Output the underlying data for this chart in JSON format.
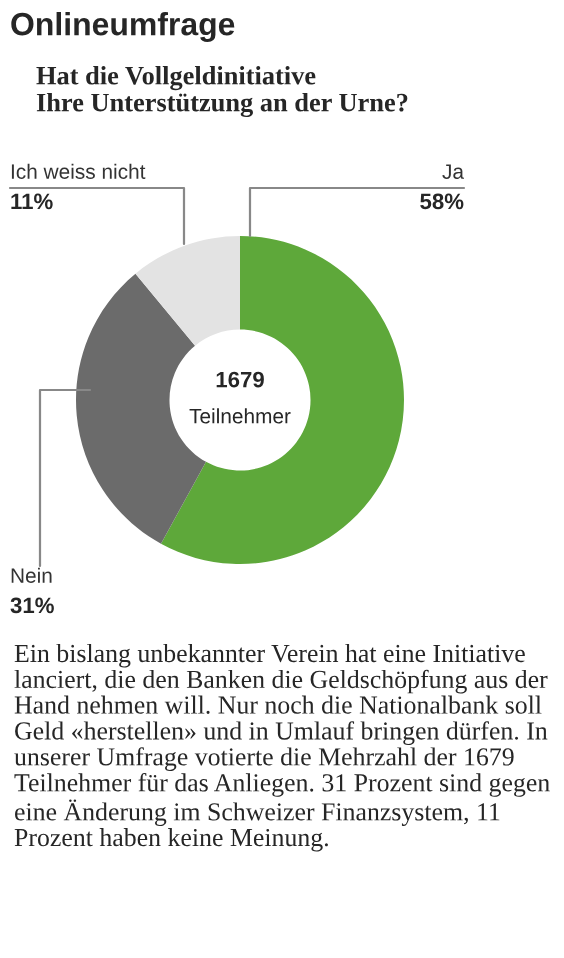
{
  "chart_data": {
    "type": "donut",
    "title": "Onlineumfrage",
    "subtitle": "Hat die Vollgeldinitiative\nIhre Unterstützung an der Urne?",
    "categories": [
      "Ja",
      "Nein",
      "Ich weiss nicht"
    ],
    "values": [
      58,
      31,
      11
    ],
    "value_labels": [
      "58%",
      "31%",
      "11%"
    ],
    "colors": [
      "#5ea83a",
      "#6b6b6b",
      "#e3e3e3"
    ],
    "legend": false,
    "annotations": [
      "1679\nTeilnehmer",
      "Ein bislang unbekannter Verein hat eine Initiative lanciert, die den Banken die Geldschöpfung aus der Hand nehmen will. Nur noch die Nationalbank soll Geld «herstellen» und in Umlauf bringen dürfen. In unserer Umfrage votierte die Mehrzahl der 1679 Teilnehmer für das Anliegen. 31 Prozent sind gegen eine Änderung im Schweizer Finanzsystem, 11 Prozent haben keine Meinung."
    ]
  }
}
